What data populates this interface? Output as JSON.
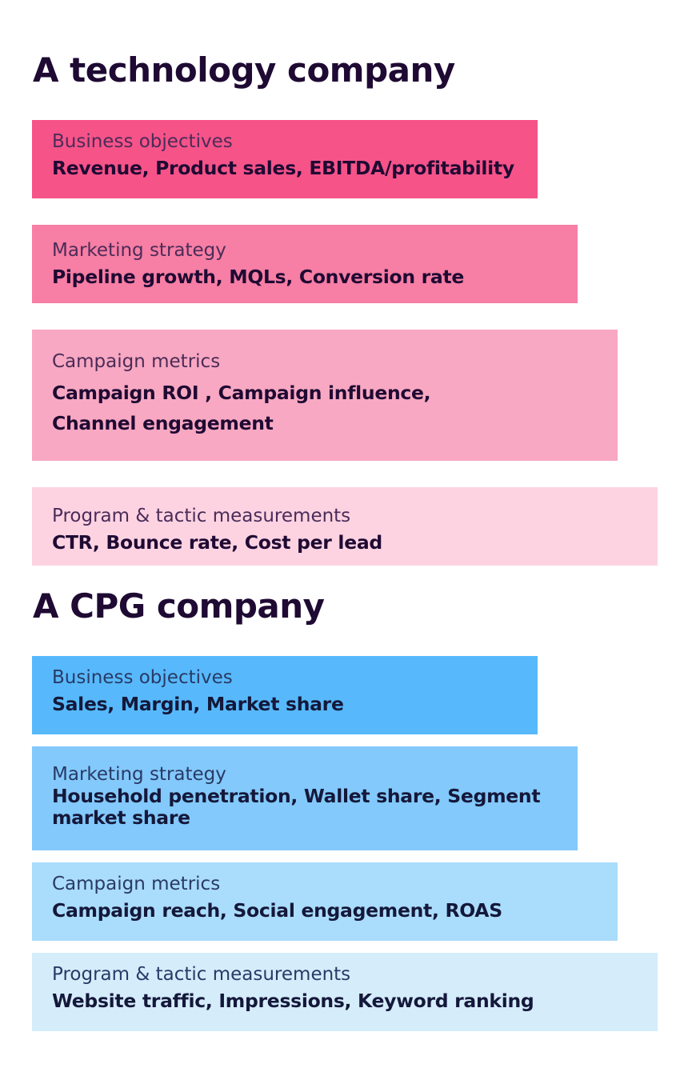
{
  "tech": {
    "title": "A technology company",
    "levels": [
      {
        "label": "Business objectives",
        "value": "Revenue, Product sales, EBITDA/profitability",
        "color": "#f65389"
      },
      {
        "label": "Marketing strategy",
        "value": "Pipeline growth, MQLs, Conversion rate",
        "color": "#f77ea4"
      },
      {
        "label": "Campaign metrics",
        "value": "Campaign ROI , Campaign influence,",
        "value2": "Channel engagement",
        "color": "#f8a8c2"
      },
      {
        "label": "Program & tactic measurements",
        "value": "CTR, Bounce rate, Cost per lead",
        "color": "#fdd3e2"
      }
    ]
  },
  "cpg": {
    "title": "A CPG company",
    "levels": [
      {
        "label": "Business objectives",
        "value": "Sales, Margin, Market share",
        "color": "#57b9fb"
      },
      {
        "label": "Marketing strategy",
        "value": "Household penetration, Wallet share, Segment",
        "value2": "market share",
        "color": "#83c9fb"
      },
      {
        "label": "Campaign metrics",
        "value": "Campaign reach, Social engagement, ROAS",
        "color": "#aadcfb"
      },
      {
        "label": "Program & tactic measurements",
        "value": "Website traffic, Impressions,  Keyword ranking",
        "color": "#d5ecfb"
      }
    ]
  }
}
